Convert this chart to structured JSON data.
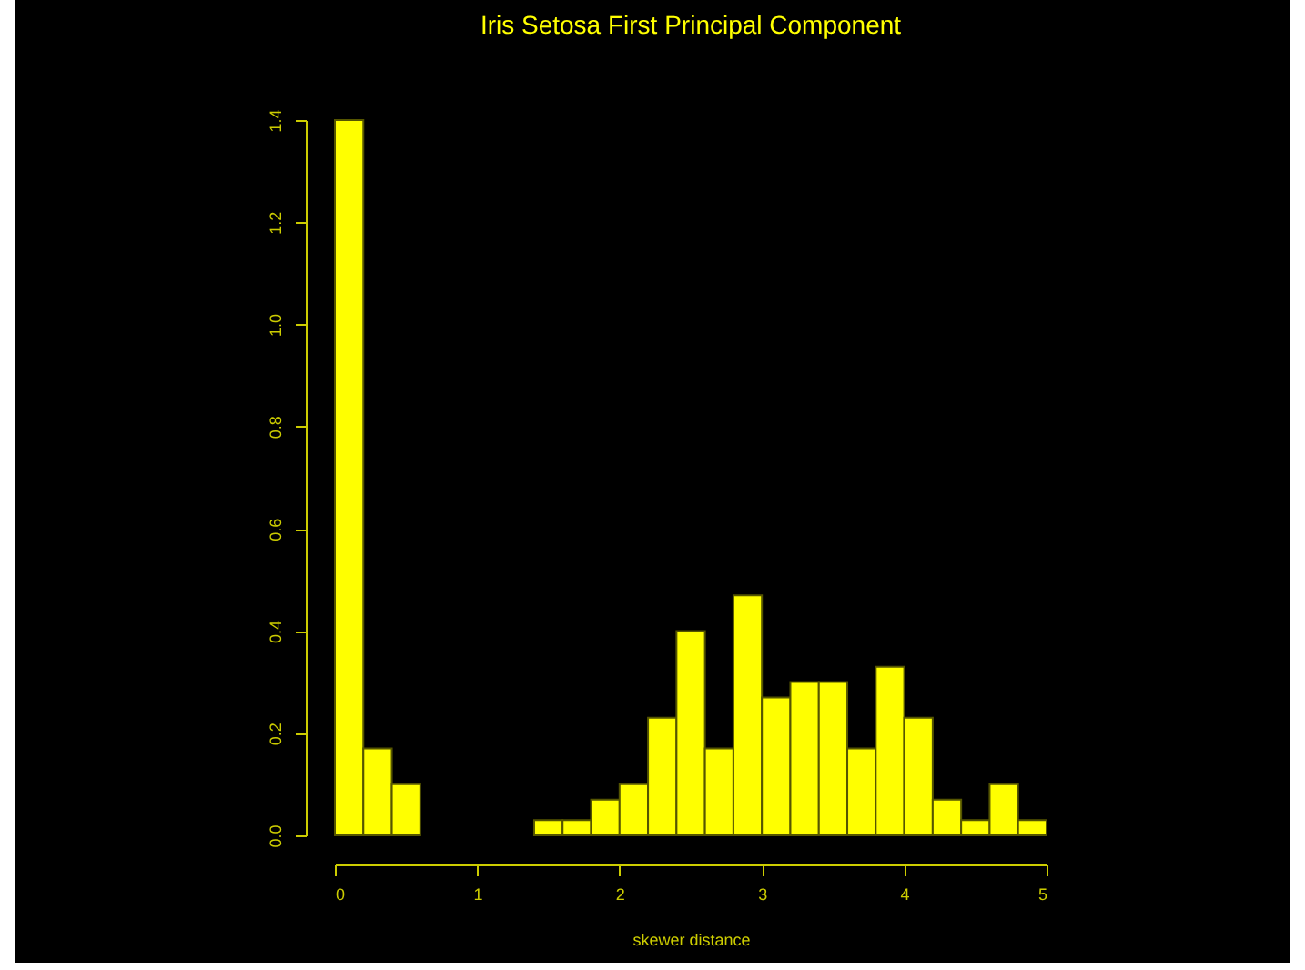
{
  "chart_data": {
    "type": "histogram",
    "title": "Iris Setosa First Principal Component",
    "xlabel": "skewer distance",
    "bins": [
      0,
      0.2,
      0.4,
      0.6,
      0.8,
      1.0,
      1.2,
      1.4,
      1.6,
      1.8,
      2.0,
      2.2,
      2.4,
      2.6,
      2.8,
      3.0,
      3.2,
      3.4,
      3.6,
      3.8,
      4.0,
      4.2,
      4.4,
      4.6,
      4.8,
      5.0
    ],
    "values": [
      1.4,
      0.17,
      0.1,
      0,
      0,
      0,
      0,
      0.03,
      0.03,
      0.07,
      0.1,
      0.23,
      0.4,
      0.17,
      0.47,
      0.27,
      0.3,
      0.3,
      0.17,
      0.33,
      0.23,
      0.07,
      0.03,
      0.1,
      0.03
    ],
    "color": "#ffff00",
    "xlim": [
      0,
      5
    ],
    "xticks": [
      0,
      1,
      2,
      3,
      4,
      5
    ],
    "ylim": [
      0,
      1.4
    ],
    "yticks": [
      {
        "value": 0,
        "label": "0.0"
      },
      {
        "value": 0.2,
        "label": "0.2"
      },
      {
        "value": 0.4,
        "label": "0.4"
      },
      {
        "value": 0.6,
        "label": "0.6"
      },
      {
        "value": 0.8,
        "label": "0.8"
      },
      {
        "value": 1.0,
        "label": "1.0"
      },
      {
        "value": 1.2,
        "label": "1.2"
      },
      {
        "value": 1.4,
        "label": "1.4"
      }
    ],
    "grid": false
  }
}
